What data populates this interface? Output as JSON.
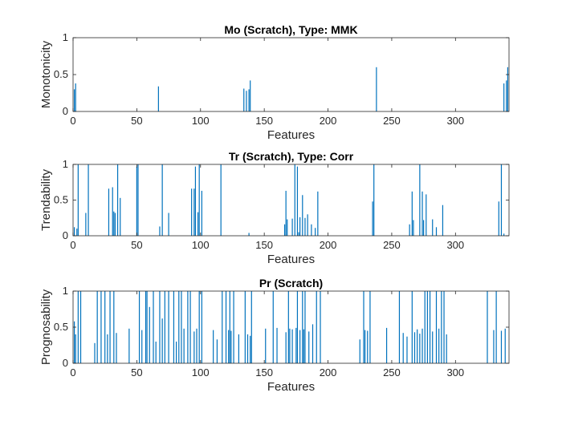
{
  "style": {
    "bar_color": "#0072BD",
    "axis_color": "#262626"
  },
  "chart_data": [
    {
      "type": "bar",
      "title": "Mo (Scratch), Type: MMK",
      "xlabel": "Features",
      "ylabel": "Monotonicity",
      "xlim": [
        0,
        342
      ],
      "ylim": [
        0,
        1
      ],
      "xticks": [
        0,
        50,
        100,
        150,
        200,
        250,
        300
      ],
      "yticks": [
        0,
        0.5,
        1
      ],
      "ytick_labels": [
        "0",
        "0.5",
        "1"
      ],
      "grid": false,
      "x": [
        1,
        2,
        67,
        134,
        136,
        138,
        139,
        238,
        338,
        340,
        341
      ],
      "values": [
        0.3,
        0.38,
        0.34,
        0.31,
        0.28,
        0.3,
        0.42,
        0.6,
        0.38,
        0.42,
        0.6
      ]
    },
    {
      "type": "bar",
      "title": "Tr (Scratch), Type: Corr",
      "xlabel": "Features",
      "ylabel": "Trendability",
      "xlim": [
        0,
        342
      ],
      "ylim": [
        0,
        1
      ],
      "xticks": [
        0,
        50,
        100,
        150,
        200,
        250,
        300
      ],
      "yticks": [
        0,
        0.5,
        1
      ],
      "ytick_labels": [
        "0",
        "0.5",
        "1"
      ],
      "grid": false,
      "x": [
        1,
        3,
        4,
        10,
        12,
        28,
        31,
        32,
        33,
        35,
        37,
        50,
        51,
        68,
        70,
        75,
        93,
        95,
        96,
        98,
        99,
        101,
        116,
        138,
        166,
        167,
        168,
        172,
        174,
        176,
        177,
        178,
        180,
        182,
        184,
        187,
        190,
        192,
        235,
        236,
        264,
        266,
        267,
        272,
        274,
        275,
        277,
        282,
        285,
        290,
        334,
        336,
        338
      ],
      "values": [
        0.12,
        0.1,
        1.0,
        0.32,
        1.0,
        0.66,
        0.68,
        0.34,
        0.32,
        1.0,
        0.53,
        0.97,
        1.0,
        0.13,
        1.0,
        0.32,
        0.66,
        0.66,
        0.97,
        0.33,
        1.0,
        0.63,
        1.0,
        0.04,
        0.16,
        0.63,
        0.23,
        0.24,
        1.0,
        0.97,
        0.05,
        0.26,
        0.57,
        0.25,
        0.3,
        0.16,
        0.11,
        0.62,
        0.48,
        1.0,
        0.16,
        0.62,
        0.22,
        1.0,
        0.62,
        0.22,
        0.58,
        0.23,
        0.12,
        0.43,
        0.48,
        1.0,
        0.03
      ]
    },
    {
      "type": "bar",
      "title": "Pr (Scratch)",
      "xlabel": "Features",
      "ylabel": "Prognosability",
      "xlim": [
        0,
        342
      ],
      "ylim": [
        0,
        1
      ],
      "xticks": [
        0,
        50,
        100,
        150,
        200,
        250,
        300
      ],
      "yticks": [
        0,
        0.5,
        1
      ],
      "ytick_labels": [
        "0",
        "0.5",
        "1"
      ],
      "grid": false,
      "x": [
        1,
        2,
        4,
        6,
        17,
        19,
        22,
        25,
        27,
        29,
        32,
        34,
        44,
        52,
        54,
        57,
        58,
        60,
        63,
        65,
        68,
        70,
        72,
        75,
        79,
        81,
        83,
        85,
        87,
        90,
        92,
        95,
        97,
        99,
        101,
        110,
        113,
        117,
        120,
        122,
        123,
        124,
        126,
        130,
        135,
        137,
        139,
        140,
        151,
        157,
        160,
        167,
        169,
        170,
        172,
        175,
        176,
        178,
        180,
        181,
        182,
        185,
        188,
        191,
        194,
        225,
        228,
        229,
        231,
        233,
        246,
        256,
        259,
        262,
        266,
        268,
        270,
        272,
        274,
        276,
        278,
        280,
        282,
        285,
        287,
        289,
        291,
        293,
        325,
        330,
        332,
        336,
        339
      ],
      "values": [
        0.58,
        0.4,
        1.0,
        1.0,
        0.28,
        1.0,
        1.0,
        1.0,
        0.4,
        1.0,
        1.0,
        0.42,
        0.48,
        1.0,
        0.46,
        1.0,
        1.0,
        0.78,
        1.0,
        0.3,
        1.0,
        0.62,
        1.0,
        1.0,
        1.0,
        0.3,
        1.0,
        1.0,
        0.48,
        1.0,
        1.0,
        0.44,
        0.48,
        1.0,
        1.0,
        0.46,
        0.33,
        1.0,
        1.0,
        0.46,
        1.0,
        0.45,
        1.0,
        0.4,
        1.0,
        0.4,
        0.38,
        1.0,
        0.48,
        1.0,
        0.49,
        0.43,
        1.0,
        0.48,
        0.47,
        0.49,
        1.0,
        0.46,
        1.0,
        0.47,
        1.0,
        0.44,
        0.54,
        1.0,
        1.0,
        0.33,
        1.0,
        0.46,
        0.45,
        1.0,
        0.49,
        1.0,
        0.42,
        0.37,
        1.0,
        0.43,
        0.47,
        0.41,
        0.48,
        1.0,
        1.0,
        1.0,
        0.44,
        1.0,
        0.48,
        1.0,
        1.0,
        0.4,
        1.0,
        0.46,
        1.0,
        0.45,
        0.48
      ]
    }
  ]
}
